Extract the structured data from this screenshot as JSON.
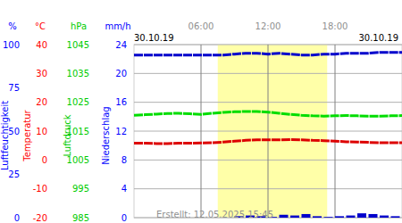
{
  "chart_data": {
    "type": "line",
    "dates": [
      "30.10.19",
      "30.10.19"
    ],
    "footer": "Erstellt: 12.05.2025 15:45",
    "x": [
      0,
      1,
      2,
      3,
      4,
      5,
      6,
      7,
      8,
      9,
      10,
      11,
      12,
      13,
      14,
      15,
      16,
      17,
      18,
      19,
      20,
      21,
      22,
      23,
      24
    ],
    "xlim": [
      0,
      24
    ],
    "xticks": [
      {
        "value": 6,
        "label": "06:00"
      },
      {
        "value": 12,
        "label": "12:00"
      },
      {
        "value": 18,
        "label": "18:00"
      }
    ],
    "daylight": [
      7.5,
      17.3
    ],
    "grid": true,
    "axes": {
      "y": {
        "label": "Luftfeuchtigkeit",
        "unit": "%",
        "lim": [
          0,
          100
        ],
        "ticks": [
          0,
          25,
          50,
          75,
          100
        ],
        "color": "#0000ff"
      },
      "y2": {
        "label": "Temperatur",
        "unit": "°C",
        "lim": [
          -20,
          40
        ],
        "ticks": [
          -20,
          -10,
          0,
          10,
          20,
          30,
          40
        ],
        "color": "#ff0000"
      },
      "y3": {
        "label": "Luftdruck",
        "unit": "hPa",
        "lim": [
          985,
          1045
        ],
        "ticks": [
          985,
          995,
          1005,
          1015,
          1025,
          1035,
          1045
        ],
        "color": "#00cc00"
      },
      "y4": {
        "label": "Niederschlag",
        "unit": "mm/h",
        "lim": [
          0,
          24
        ],
        "ticks": [
          0,
          4,
          8,
          12,
          16,
          20,
          24
        ],
        "color": "#0000ff"
      }
    },
    "series": [
      {
        "name": "Luftfeuchtigkeit",
        "axis": "y",
        "color": "#0000cc",
        "type": "line",
        "values": [
          94,
          94,
          94,
          94,
          94,
          94,
          94,
          94,
          94,
          94.5,
          95,
          95,
          94.5,
          95,
          94.5,
          94,
          94,
          94.5,
          94.5,
          95,
          95,
          95,
          95.5,
          95.5,
          95.5
        ]
      },
      {
        "name": "Temperatur",
        "axis": "y2",
        "color": "#dd0000",
        "type": "line",
        "values": [
          5.8,
          5.8,
          5.7,
          5.7,
          5.8,
          5.8,
          5.9,
          6.0,
          6.2,
          6.5,
          6.8,
          7.0,
          7.0,
          7.0,
          7.1,
          7.0,
          6.8,
          6.7,
          6.5,
          6.3,
          6.2,
          6.1,
          6.0,
          6.0,
          6.0
        ]
      },
      {
        "name": "Luftdruck",
        "axis": "y3",
        "color": "#00dd00",
        "type": "line",
        "values": [
          1020.5,
          1020.7,
          1020.9,
          1021.1,
          1021.2,
          1021.0,
          1020.8,
          1021.2,
          1021.5,
          1021.7,
          1021.8,
          1021.8,
          1021.6,
          1021.2,
          1020.8,
          1020.5,
          1020.3,
          1020.2,
          1020.3,
          1020.4,
          1020.3,
          1020.2,
          1020.2,
          1020.3,
          1020.4
        ]
      },
      {
        "name": "Niederschlag",
        "axis": "y4",
        "color": "#0000cc",
        "type": "bar",
        "values": [
          0,
          0,
          0,
          0,
          0,
          0,
          0,
          0,
          0,
          0.2,
          0.3,
          0.2,
          0.1,
          0.4,
          0.3,
          0.5,
          0.2,
          0.1,
          0.2,
          0.3,
          0.6,
          0.5,
          0.3,
          0.2,
          0.1
        ]
      }
    ]
  }
}
